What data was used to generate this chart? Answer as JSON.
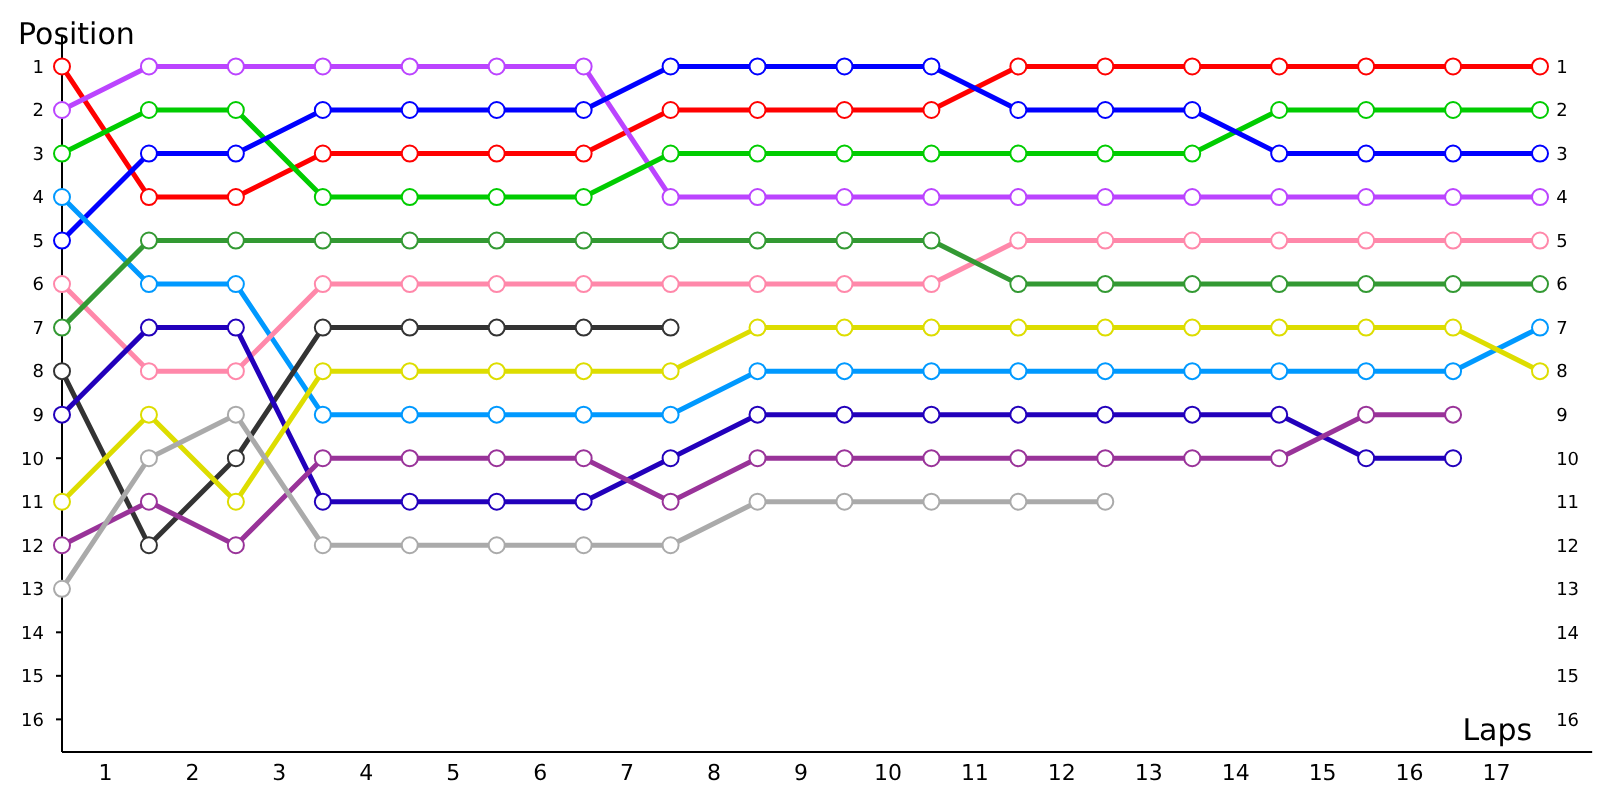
{
  "chart_data": {
    "type": "line",
    "xlabel": "Laps",
    "ylabel": "Position",
    "marker": "circle",
    "grid": false,
    "x": [
      0,
      1,
      2,
      3,
      4,
      5,
      6,
      7,
      8,
      9,
      10,
      11,
      12,
      13,
      14,
      15,
      16,
      17
    ],
    "xlim": [
      0,
      17.6
    ],
    "xticks": [
      {
        "value": 0.5,
        "label": "1"
      },
      {
        "value": 1.5,
        "label": "2"
      },
      {
        "value": 2.5,
        "label": "3"
      },
      {
        "value": 3.5,
        "label": "4"
      },
      {
        "value": 4.5,
        "label": "5"
      },
      {
        "value": 5.5,
        "label": "6"
      },
      {
        "value": 6.5,
        "label": "7"
      },
      {
        "value": 7.5,
        "label": "8"
      },
      {
        "value": 8.5,
        "label": "9"
      },
      {
        "value": 9.5,
        "label": "10"
      },
      {
        "value": 10.5,
        "label": "11"
      },
      {
        "value": 11.5,
        "label": "12"
      },
      {
        "value": 12.5,
        "label": "13"
      },
      {
        "value": 13.5,
        "label": "14"
      },
      {
        "value": 14.5,
        "label": "15"
      },
      {
        "value": 15.5,
        "label": "16"
      },
      {
        "value": 16.5,
        "label": "17"
      }
    ],
    "ylim": [
      16.75,
      0.3
    ],
    "yticks": [
      1,
      2,
      3,
      4,
      5,
      6,
      7,
      8,
      9,
      10,
      11,
      12,
      13,
      14,
      15,
      16
    ],
    "y2lim": [
      16.75,
      0.3
    ],
    "y2ticks": [
      1,
      2,
      3,
      4,
      5,
      6,
      7,
      8,
      9,
      10,
      11,
      12,
      13,
      14,
      15,
      16
    ],
    "series": [
      {
        "color": "#ff0000",
        "values": [
          1,
          4,
          4,
          3,
          3,
          3,
          3,
          2,
          2,
          2,
          2,
          1,
          1,
          1,
          1,
          1,
          1,
          1
        ]
      },
      {
        "color": "#bb44ff",
        "values": [
          2,
          1,
          1,
          1,
          1,
          1,
          1,
          4,
          4,
          4,
          4,
          4,
          4,
          4,
          4,
          4,
          4,
          4
        ]
      },
      {
        "color": "#00cc00",
        "values": [
          3,
          2,
          2,
          4,
          4,
          4,
          4,
          3,
          3,
          3,
          3,
          3,
          3,
          3,
          2,
          2,
          2,
          2
        ]
      },
      {
        "color": "#0000ff",
        "values": [
          5,
          3,
          3,
          2,
          2,
          2,
          2,
          1,
          1,
          1,
          1,
          2,
          2,
          2,
          3,
          3,
          3,
          3
        ]
      },
      {
        "color": "#0099ff",
        "values": [
          4,
          6,
          6,
          9,
          9,
          9,
          9,
          9,
          8,
          8,
          8,
          8,
          8,
          8,
          8,
          8,
          8,
          7
        ]
      },
      {
        "color": "#ff88aa",
        "values": [
          6,
          8,
          8,
          6,
          6,
          6,
          6,
          6,
          6,
          6,
          6,
          5,
          5,
          5,
          5,
          5,
          5,
          5
        ]
      },
      {
        "color": "#339933",
        "values": [
          7,
          5,
          5,
          5,
          5,
          5,
          5,
          5,
          5,
          5,
          5,
          6,
          6,
          6,
          6,
          6,
          6,
          6
        ]
      },
      {
        "color": "#333333",
        "values": [
          8,
          12,
          10,
          7,
          7,
          7,
          7,
          7,
          null,
          null,
          null,
          null,
          null,
          null,
          null,
          null,
          null,
          null
        ]
      },
      {
        "color": "#2200bb",
        "values": [
          9,
          7,
          7,
          11,
          11,
          11,
          11,
          10,
          9,
          9,
          9,
          9,
          9,
          9,
          9,
          10,
          10,
          null
        ]
      },
      {
        "color": "#dddd00",
        "values": [
          11,
          9,
          11,
          8,
          8,
          8,
          8,
          8,
          7,
          7,
          7,
          7,
          7,
          7,
          7,
          7,
          7,
          8
        ]
      },
      {
        "color": "#993399",
        "values": [
          12,
          11,
          12,
          10,
          10,
          10,
          10,
          11,
          10,
          10,
          10,
          10,
          10,
          10,
          10,
          9,
          9,
          null
        ]
      },
      {
        "color": "#aaaaaa",
        "values": [
          13,
          10,
          9,
          12,
          12,
          12,
          12,
          12,
          11,
          11,
          11,
          11,
          11,
          null,
          null,
          null,
          null,
          null
        ]
      }
    ]
  }
}
